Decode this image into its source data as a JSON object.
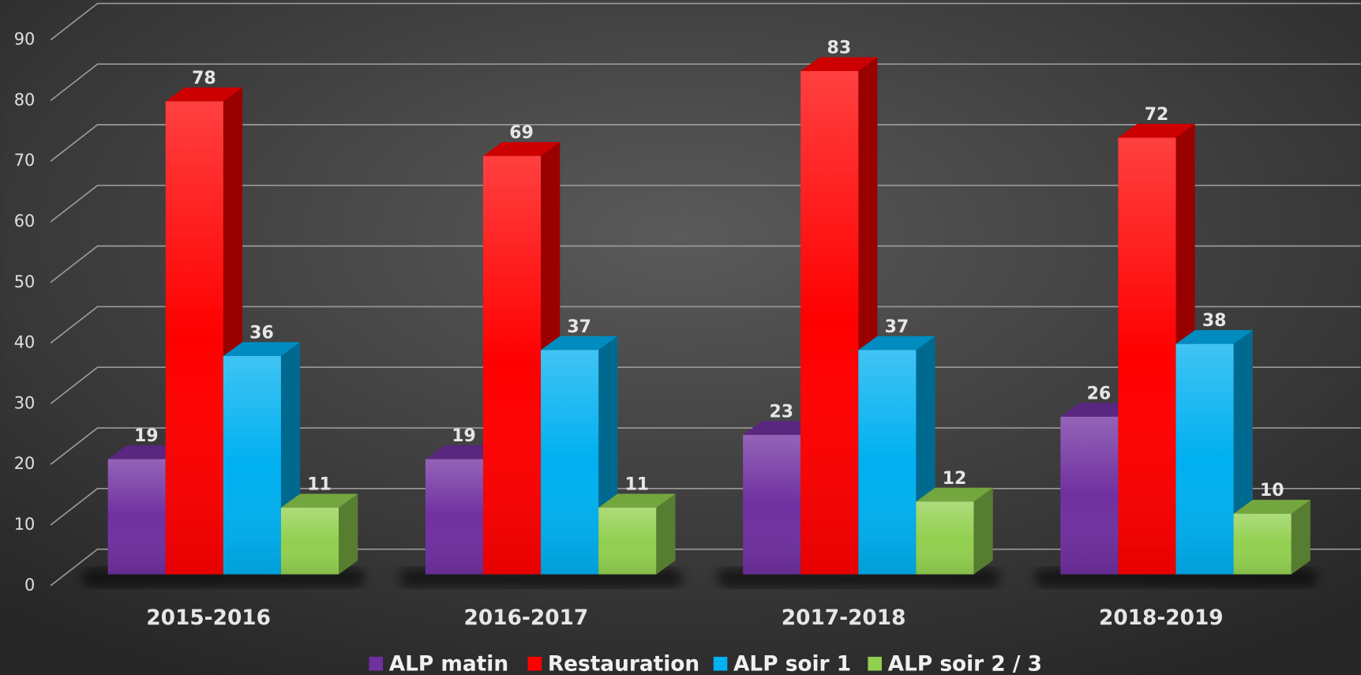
{
  "chart_data": {
    "type": "bar3d",
    "categories": [
      "2015-2016",
      "2016-2017",
      "2017-2018",
      "2018-2019"
    ],
    "series": [
      {
        "name": "ALP matin",
        "color": "#7030a0",
        "values": [
          19,
          19,
          23,
          26
        ]
      },
      {
        "name": "Restauration",
        "color": "#ff0000",
        "values": [
          78,
          69,
          83,
          72
        ]
      },
      {
        "name": "ALP soir 1",
        "color": "#00b0f0",
        "values": [
          36,
          37,
          37,
          38
        ]
      },
      {
        "name": "ALP soir 2 / 3",
        "color": "#92d050",
        "values": [
          11,
          11,
          12,
          10
        ]
      }
    ],
    "ylim": [
      0,
      90
    ],
    "yticks": [
      0,
      10,
      20,
      30,
      40,
      50,
      60,
      70,
      80,
      90
    ],
    "grid": true,
    "legend": "bottom"
  }
}
